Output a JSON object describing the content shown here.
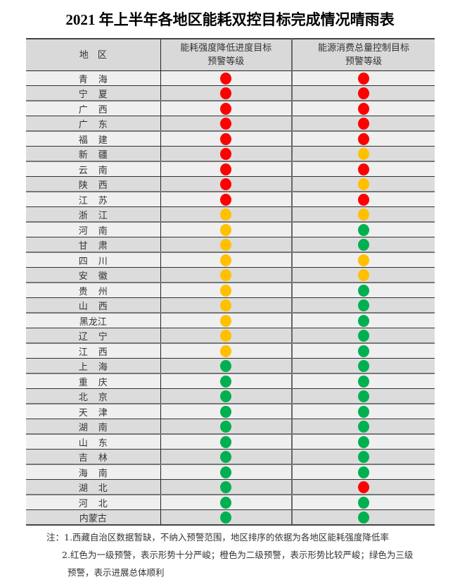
{
  "title": "2021 年上半年各地区能耗双控目标完成情况晴雨表",
  "headers": {
    "region": "地　区",
    "intensity": [
      "能耗强度降低进度目标",
      "预警等级"
    ],
    "total": [
      "能源消费总量控制目标",
      "预警等级"
    ]
  },
  "colors": {
    "red": "#ff0000",
    "orange": "#ffc000",
    "green": "#00b050"
  },
  "rows": [
    {
      "region": "青海",
      "intensity": "red",
      "total": "red"
    },
    {
      "region": "宁夏",
      "intensity": "red",
      "total": "red"
    },
    {
      "region": "广西",
      "intensity": "red",
      "total": "red"
    },
    {
      "region": "广东",
      "intensity": "red",
      "total": "red"
    },
    {
      "region": "福建",
      "intensity": "red",
      "total": "red"
    },
    {
      "region": "新疆",
      "intensity": "red",
      "total": "orange"
    },
    {
      "region": "云南",
      "intensity": "red",
      "total": "red"
    },
    {
      "region": "陕西",
      "intensity": "red",
      "total": "orange"
    },
    {
      "region": "江苏",
      "intensity": "red",
      "total": "red"
    },
    {
      "region": "浙江",
      "intensity": "orange",
      "total": "orange"
    },
    {
      "region": "河南",
      "intensity": "orange",
      "total": "green"
    },
    {
      "region": "甘肃",
      "intensity": "orange",
      "total": "green"
    },
    {
      "region": "四川",
      "intensity": "orange",
      "total": "orange"
    },
    {
      "region": "安徽",
      "intensity": "orange",
      "total": "orange"
    },
    {
      "region": "贵州",
      "intensity": "orange",
      "total": "green"
    },
    {
      "region": "山西",
      "intensity": "orange",
      "total": "green"
    },
    {
      "region": "黑龙江",
      "intensity": "orange",
      "total": "green"
    },
    {
      "region": "辽宁",
      "intensity": "orange",
      "total": "green"
    },
    {
      "region": "江西",
      "intensity": "orange",
      "total": "green"
    },
    {
      "region": "上海",
      "intensity": "green",
      "total": "green"
    },
    {
      "region": "重庆",
      "intensity": "green",
      "total": "green"
    },
    {
      "region": "北京",
      "intensity": "green",
      "total": "green"
    },
    {
      "region": "天津",
      "intensity": "green",
      "total": "green"
    },
    {
      "region": "湖南",
      "intensity": "green",
      "total": "green"
    },
    {
      "region": "山东",
      "intensity": "green",
      "total": "green"
    },
    {
      "region": "吉林",
      "intensity": "green",
      "total": "green"
    },
    {
      "region": "海南",
      "intensity": "green",
      "total": "green"
    },
    {
      "region": "湖北",
      "intensity": "green",
      "total": "red"
    },
    {
      "region": "河北",
      "intensity": "green",
      "total": "green"
    },
    {
      "region": "内蒙古",
      "intensity": "green",
      "total": "green"
    }
  ],
  "notes": [
    "注：1.西藏自治区数据暂缺，不纳入预警范围，地区排序的依据为各地区能耗强度降低率",
    "2.红色为一级预警，表示形势十分严峻；橙色为二级预警，表示形势比较严峻；绿色为三级",
    "预警，表示进展总体顺利"
  ]
}
